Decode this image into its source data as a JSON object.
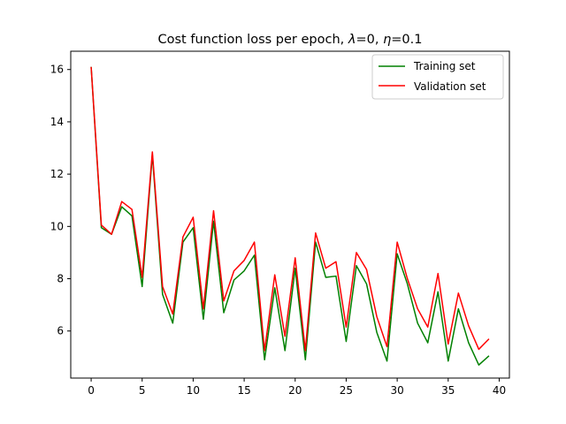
{
  "chart_data": {
    "type": "line",
    "title": "Cost function loss per epoch, λ=0, η=0.1",
    "title_parts": {
      "prefix": "Cost function loss per epoch, ",
      "lambda_symbol": "λ",
      "lambda_value": "=0, ",
      "eta_symbol": "η",
      "eta_value": "=0.1"
    },
    "xlabel": "",
    "ylabel": "",
    "xlim": [
      -2,
      41
    ],
    "ylim": [
      4.2,
      16.7
    ],
    "xticks": [
      0,
      5,
      10,
      15,
      20,
      25,
      30,
      35,
      40
    ],
    "yticks": [
      6,
      8,
      10,
      12,
      14,
      16
    ],
    "xtick_labels": [
      "0",
      "5",
      "10",
      "15",
      "20",
      "25",
      "30",
      "35",
      "40"
    ],
    "ytick_labels": [
      "6",
      "8",
      "10",
      "12",
      "14",
      "16"
    ],
    "grid": false,
    "legend_position": "top-right",
    "x": [
      0,
      1,
      2,
      3,
      4,
      5,
      6,
      7,
      8,
      9,
      10,
      11,
      12,
      13,
      14,
      15,
      16,
      17,
      18,
      19,
      20,
      21,
      22,
      23,
      24,
      25,
      26,
      27,
      28,
      29,
      30,
      31,
      32,
      33,
      34,
      35,
      36,
      37,
      38,
      39
    ],
    "series": [
      {
        "name": "Training set",
        "color": "#008000",
        "values": [
          16.1,
          9.95,
          9.7,
          10.75,
          10.4,
          7.7,
          12.75,
          7.4,
          6.3,
          9.4,
          9.95,
          6.45,
          10.2,
          6.7,
          7.95,
          8.3,
          8.9,
          4.9,
          7.65,
          5.25,
          8.4,
          4.9,
          9.4,
          8.05,
          8.1,
          5.6,
          8.5,
          7.8,
          5.95,
          4.85,
          8.95,
          7.8,
          6.3,
          5.55,
          7.5,
          4.85,
          6.85,
          5.55,
          4.7,
          5.05
        ]
      },
      {
        "name": "Validation set",
        "color": "#ff0000",
        "values": [
          16.1,
          10.05,
          9.7,
          10.95,
          10.65,
          8.05,
          12.85,
          7.7,
          6.65,
          9.6,
          10.35,
          6.85,
          10.6,
          7.15,
          8.3,
          8.7,
          9.4,
          5.25,
          8.15,
          5.8,
          8.8,
          5.25,
          9.75,
          8.4,
          8.65,
          6.15,
          9.0,
          8.35,
          6.55,
          5.4,
          9.4,
          8.0,
          6.85,
          6.15,
          8.2,
          5.5,
          7.45,
          6.2,
          5.3,
          5.7
        ]
      }
    ]
  }
}
